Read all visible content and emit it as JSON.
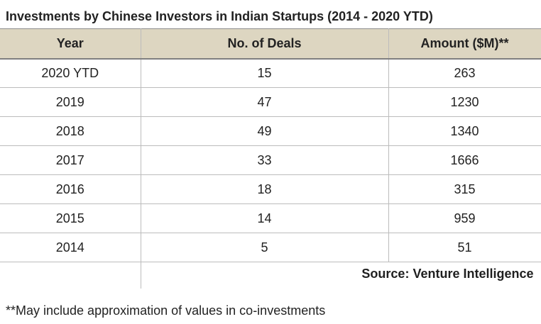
{
  "title": "Investments by Chinese Investors in Indian Startups (2014 - 2020 YTD)",
  "chart_data": {
    "type": "table",
    "title": "Investments by Chinese Investors in Indian Startups (2014 - 2020 YTD)",
    "columns": [
      "Year",
      "No. of Deals",
      "Amount ($M)**"
    ],
    "rows": [
      [
        "2020 YTD",
        "15",
        "263"
      ],
      [
        "2019",
        "47",
        "1230"
      ],
      [
        "2018",
        "49",
        "1340"
      ],
      [
        "2017",
        "33",
        "1666"
      ],
      [
        "2016",
        "18",
        "315"
      ],
      [
        "2015",
        "14",
        "959"
      ],
      [
        "2014",
        "5",
        "51"
      ]
    ],
    "source": "Source: Venture Intelligence",
    "footnote": "**May include approximation of values in co-investments"
  },
  "colors": {
    "header_bg": "#ddd6c1",
    "grid": "#bcbcbc"
  }
}
